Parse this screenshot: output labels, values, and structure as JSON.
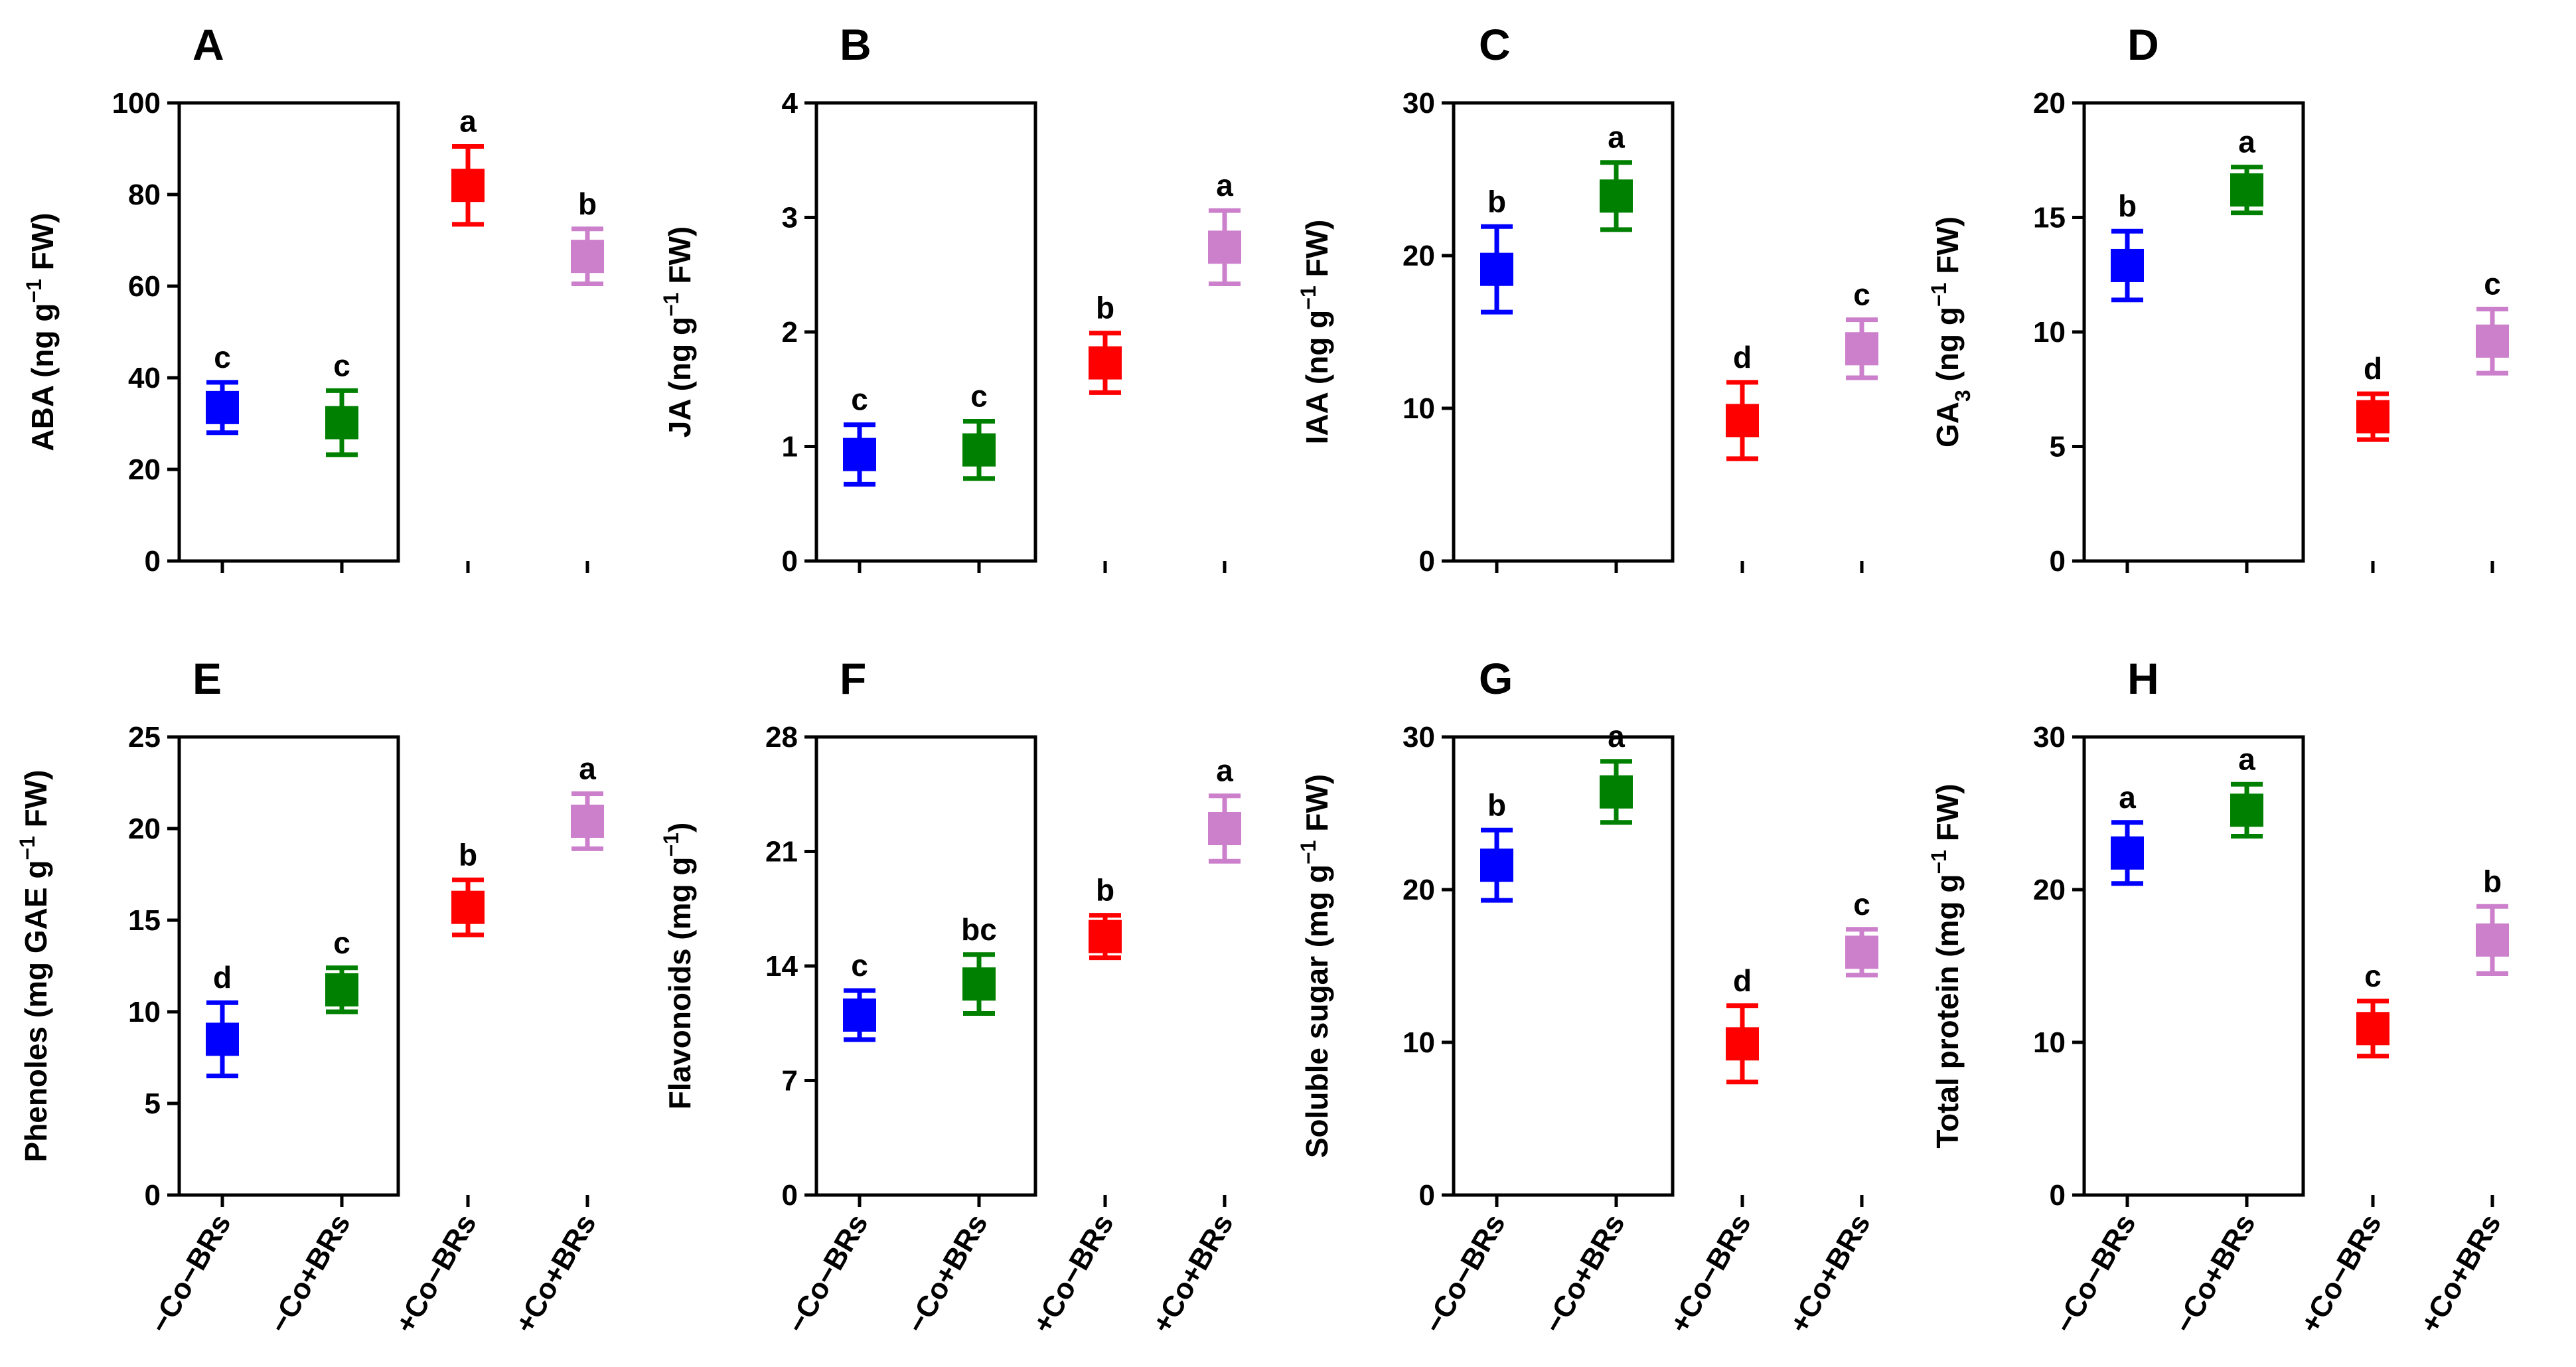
{
  "chart_data": [
    {
      "type": "scatter",
      "panel": "A",
      "ylabel_main": "ABA (ng g",
      "ylabel_sup": "−1",
      "ylabel_end": " FW)",
      "ylim": [
        0,
        100
      ],
      "yticks": [
        0,
        20,
        40,
        60,
        80,
        100
      ],
      "categories": [
        "−Co−BRs",
        "−Co+BRs",
        "+Co−BRs",
        "+Co+BRs"
      ],
      "show_category_labels": false,
      "values": [
        33.5,
        30.2,
        82.0,
        66.5
      ],
      "errors": [
        5.5,
        7.0,
        8.5,
        6.0
      ],
      "letters": [
        "c",
        "c",
        "a",
        "b"
      ],
      "colors": [
        "#0000ff",
        "#008000",
        "#ff0000",
        "#cc80cc"
      ]
    },
    {
      "type": "scatter",
      "panel": "B",
      "ylabel_main": "JA (ng g",
      "ylabel_sup": "−1",
      "ylabel_end": " FW)",
      "ylim": [
        0,
        4
      ],
      "yticks": [
        0,
        1,
        2,
        3,
        4
      ],
      "categories": [
        "−Co−BRs",
        "−Co+BRs",
        "+Co−BRs",
        "+Co+BRs"
      ],
      "show_category_labels": false,
      "values": [
        0.93,
        0.97,
        1.73,
        2.74
      ],
      "errors": [
        0.26,
        0.25,
        0.26,
        0.32
      ],
      "letters": [
        "c",
        "c",
        "b",
        "a"
      ],
      "colors": [
        "#0000ff",
        "#008000",
        "#ff0000",
        "#cc80cc"
      ]
    },
    {
      "type": "scatter",
      "panel": "C",
      "ylabel_main": "IAA (ng g",
      "ylabel_sup": "−1",
      "ylabel_end": " FW)",
      "ylim": [
        0,
        30
      ],
      "yticks": [
        0,
        10,
        20,
        30
      ],
      "categories": [
        "−Co−BRs",
        "−Co+BRs",
        "+Co−BRs",
        "+Co+BRs"
      ],
      "show_category_labels": false,
      "values": [
        19.1,
        23.9,
        9.2,
        13.9
      ],
      "errors": [
        2.8,
        2.2,
        2.5,
        1.9
      ],
      "letters": [
        "b",
        "a",
        "d",
        "c"
      ],
      "colors": [
        "#0000ff",
        "#008000",
        "#ff0000",
        "#cc80cc"
      ]
    },
    {
      "type": "scatter",
      "panel": "D",
      "ylabel_main": "GA",
      "ylabel_sub": "3",
      "ylabel_rest": " (ng g",
      "ylabel_sup": "−1",
      "ylabel_end": " FW)",
      "ylim": [
        0,
        20
      ],
      "yticks": [
        0,
        5,
        10,
        15,
        20
      ],
      "categories": [
        "−Co−BRs",
        "−Co+BRs",
        "+Co−BRs",
        "+Co+BRs"
      ],
      "show_category_labels": false,
      "values": [
        12.9,
        16.2,
        6.3,
        9.6
      ],
      "errors": [
        1.5,
        1.0,
        1.0,
        1.4
      ],
      "letters": [
        "b",
        "a",
        "d",
        "c"
      ],
      "colors": [
        "#0000ff",
        "#008000",
        "#ff0000",
        "#cc80cc"
      ]
    },
    {
      "type": "scatter",
      "panel": "E",
      "ylabel_main": "Phenoles (mg GAE g",
      "ylabel_sup": "−1",
      "ylabel_end": " FW)",
      "ylim": [
        0,
        25
      ],
      "yticks": [
        0,
        5,
        10,
        15,
        20,
        25
      ],
      "categories": [
        "−Co−BRs",
        "−Co+BRs",
        "+Co−BRs",
        "+Co+BRs"
      ],
      "show_category_labels": true,
      "values": [
        8.5,
        11.2,
        15.7,
        20.4
      ],
      "errors": [
        2.0,
        1.2,
        1.5,
        1.5
      ],
      "letters": [
        "d",
        "c",
        "b",
        "a"
      ],
      "colors": [
        "#0000ff",
        "#008000",
        "#ff0000",
        "#cc80cc"
      ]
    },
    {
      "type": "scatter",
      "panel": "F",
      "ylabel_main": "Flavonoids (mg g",
      "ylabel_sup": "−1",
      "ylabel_end": ")",
      "ylim": [
        0,
        28
      ],
      "yticks": [
        0,
        7,
        14,
        21,
        28
      ],
      "categories": [
        "−Co−BRs",
        "−Co+BRs",
        "+Co−BRs",
        "+Co+BRs"
      ],
      "show_category_labels": true,
      "values": [
        11.0,
        12.9,
        15.8,
        22.4
      ],
      "errors": [
        1.5,
        1.8,
        1.3,
        2.0
      ],
      "letters": [
        "c",
        "bc",
        "b",
        "a"
      ],
      "colors": [
        "#0000ff",
        "#008000",
        "#ff0000",
        "#cc80cc"
      ]
    },
    {
      "type": "scatter",
      "panel": "G",
      "ylabel_main": "Soluble sugar (mg g",
      "ylabel_sup": "−1",
      "ylabel_end": " FW)",
      "ylim": [
        0,
        30
      ],
      "yticks": [
        0,
        10,
        20,
        30
      ],
      "categories": [
        "−Co−BRs",
        "−Co+BRs",
        "+Co−BRs",
        "+Co+BRs"
      ],
      "show_category_labels": true,
      "values": [
        21.6,
        26.4,
        9.9,
        15.9
      ],
      "errors": [
        2.3,
        2.0,
        2.5,
        1.5
      ],
      "letters": [
        "b",
        "a",
        "d",
        "c"
      ],
      "colors": [
        "#0000ff",
        "#008000",
        "#ff0000",
        "#cc80cc"
      ]
    },
    {
      "type": "scatter",
      "panel": "H",
      "ylabel_main": "Total protein (mg g",
      "ylabel_sup": "−1",
      "ylabel_end": " FW)",
      "ylim": [
        0,
        30
      ],
      "yticks": [
        0,
        10,
        20,
        30
      ],
      "categories": [
        "−Co−BRs",
        "−Co+BRs",
        "+Co−BRs",
        "+Co+BRs"
      ],
      "show_category_labels": true,
      "values": [
        22.4,
        25.2,
        10.9,
        16.7
      ],
      "errors": [
        2.0,
        1.7,
        1.8,
        2.2
      ],
      "letters": [
        "a",
        "a",
        "c",
        "b"
      ],
      "colors": [
        "#0000ff",
        "#008000",
        "#ff0000",
        "#cc80cc"
      ]
    }
  ]
}
